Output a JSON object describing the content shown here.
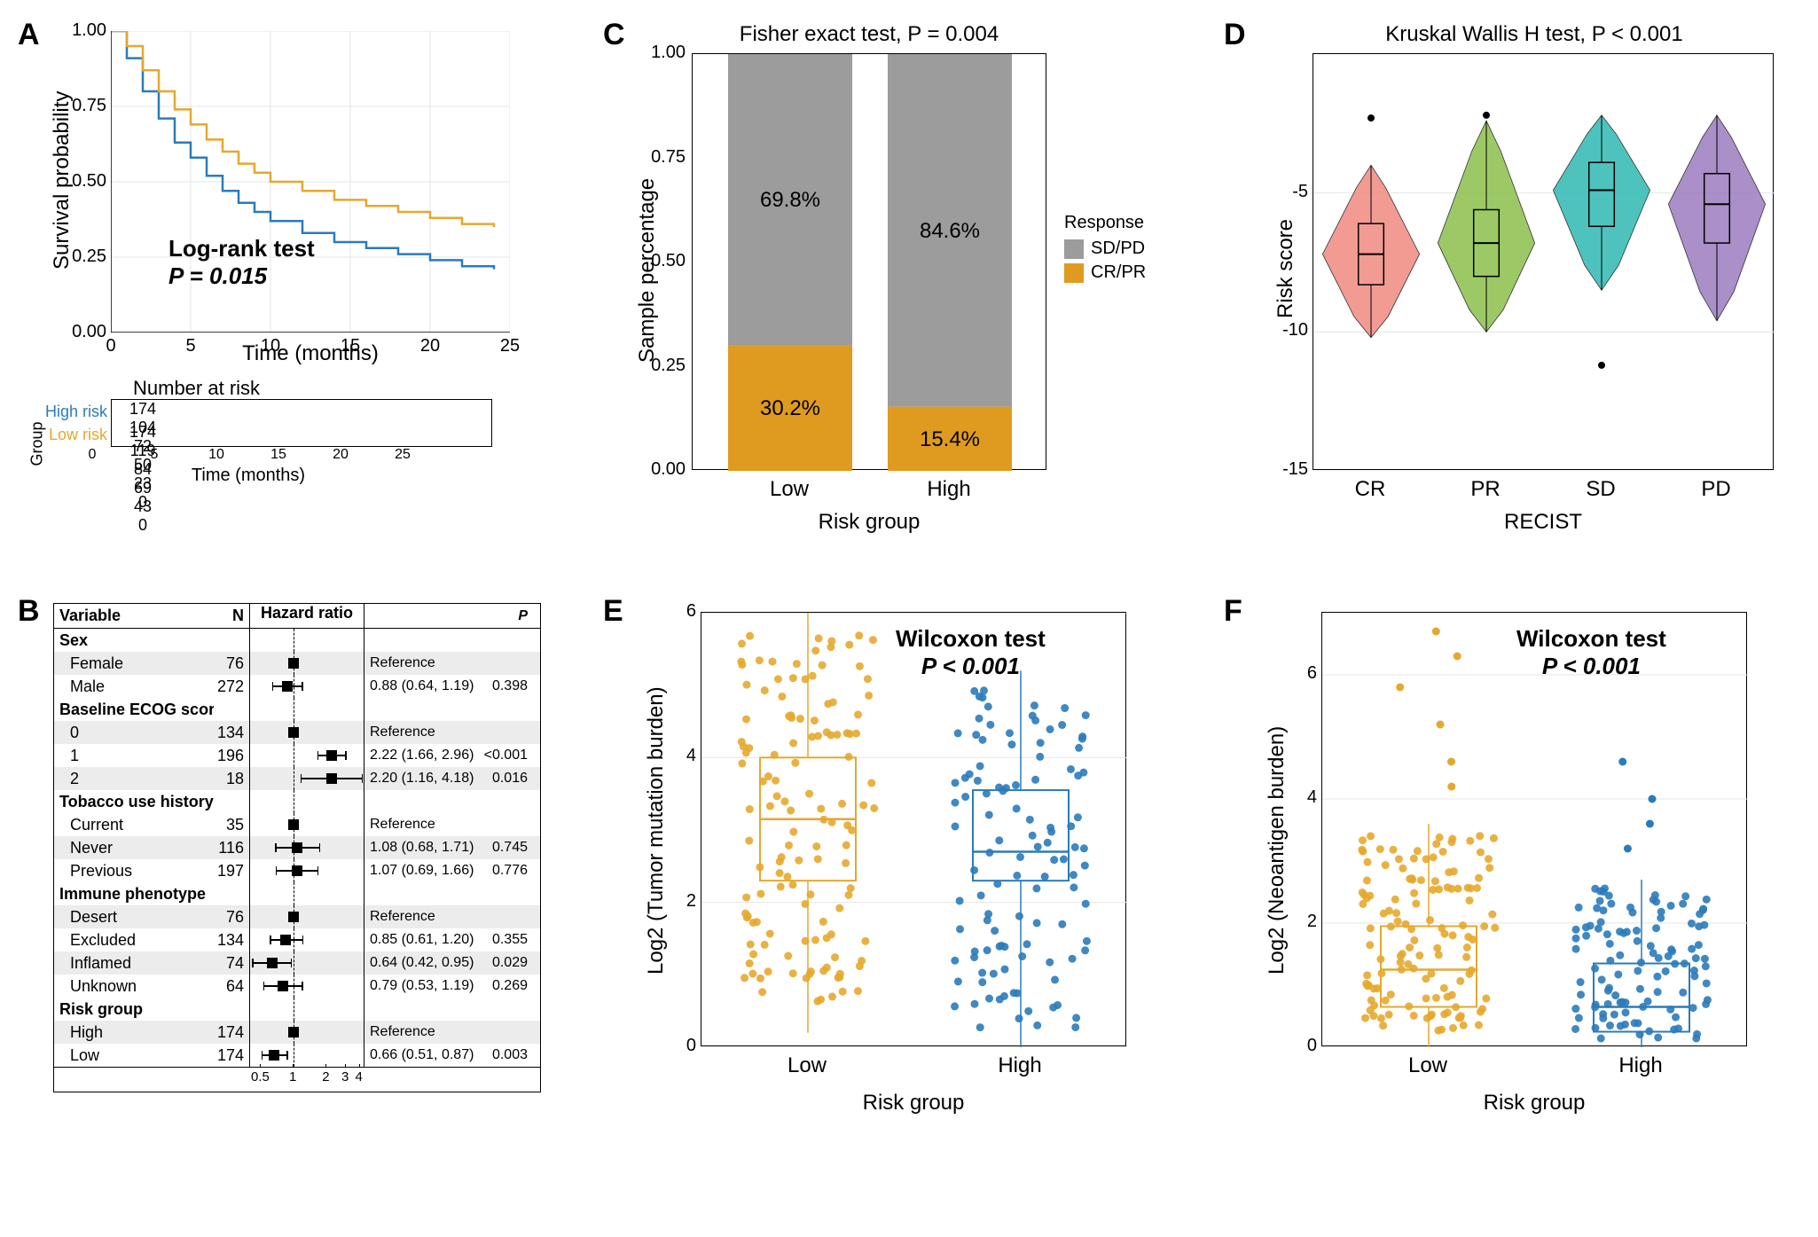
{
  "colors": {
    "high_risk": "#2b7bba",
    "low_risk": "#e5a82e",
    "sd_pd": "#9c9c9c",
    "cr_pr": "#de9b1f",
    "violin_cr": "#f08a80",
    "violin_pr": "#8bbf4b",
    "violin_sd": "#2fb8b3",
    "violin_pd": "#9b7bbf",
    "grid": "#e5e5e5",
    "text": "#000000"
  },
  "panelA": {
    "label": "A",
    "type": "km-survival",
    "ylabel": "Survival probability",
    "xlabel": "Time (months)",
    "xlim": [
      0,
      25
    ],
    "xticks": [
      0,
      5,
      10,
      15,
      20,
      25
    ],
    "ylim": [
      0,
      1
    ],
    "yticks": [
      0,
      0.25,
      0.5,
      0.75,
      1
    ],
    "yticks_labels": [
      "0.00",
      "0.25",
      "0.50",
      "0.75",
      "1.00"
    ],
    "annotation_lines": [
      "Log-rank test",
      "P = 0.015"
    ],
    "series": {
      "high": {
        "color": "#2b7bba",
        "points": [
          [
            0,
            1.0
          ],
          [
            1,
            0.91
          ],
          [
            2,
            0.8
          ],
          [
            3,
            0.71
          ],
          [
            4,
            0.63
          ],
          [
            5,
            0.58
          ],
          [
            6,
            0.52
          ],
          [
            7,
            0.47
          ],
          [
            8,
            0.43
          ],
          [
            9,
            0.4
          ],
          [
            10,
            0.37
          ],
          [
            12,
            0.33
          ],
          [
            14,
            0.3
          ],
          [
            16,
            0.28
          ],
          [
            18,
            0.26
          ],
          [
            20,
            0.24
          ],
          [
            22,
            0.22
          ],
          [
            24,
            0.21
          ]
        ]
      },
      "low": {
        "color": "#e5a82e",
        "points": [
          [
            0,
            1.0
          ],
          [
            1,
            0.95
          ],
          [
            2,
            0.87
          ],
          [
            3,
            0.8
          ],
          [
            4,
            0.74
          ],
          [
            5,
            0.69
          ],
          [
            6,
            0.64
          ],
          [
            7,
            0.6
          ],
          [
            8,
            0.56
          ],
          [
            9,
            0.53
          ],
          [
            10,
            0.5
          ],
          [
            12,
            0.47
          ],
          [
            14,
            0.44
          ],
          [
            16,
            0.42
          ],
          [
            18,
            0.4
          ],
          [
            20,
            0.38
          ],
          [
            22,
            0.36
          ],
          [
            24,
            0.35
          ]
        ]
      }
    },
    "risk_table": {
      "title": "Number at risk",
      "group_label": "Group",
      "rows": [
        {
          "label": "High risk",
          "color": "#2b7bba",
          "values": [
            174,
            104,
            72,
            50,
            23,
            0
          ]
        },
        {
          "label": "Low risk",
          "color": "#e5a82e",
          "values": [
            174,
            119,
            84,
            69,
            43,
            0
          ]
        }
      ],
      "xlabel": "Time (months)"
    }
  },
  "panelB": {
    "label": "B",
    "type": "forest",
    "headers": {
      "var": "Variable",
      "n": "N",
      "hr": "Hazard ratio",
      "p": "P"
    },
    "xticks": [
      0.5,
      1,
      2,
      3,
      4
    ],
    "xlog": true,
    "ref": 1,
    "rows": [
      {
        "section": "Sex"
      },
      {
        "var": "Female",
        "n": 76,
        "hr": null,
        "ci": null,
        "p": null,
        "ref": true
      },
      {
        "var": "Male",
        "n": 272,
        "hr": 0.88,
        "ci": [
          0.64,
          1.19
        ],
        "p": "0.398"
      },
      {
        "section": "Baseline ECOG score"
      },
      {
        "var": "0",
        "n": 134,
        "hr": null,
        "ref": true
      },
      {
        "var": "1",
        "n": 196,
        "hr": 2.22,
        "ci": [
          1.66,
          2.96
        ],
        "p": "<0.001"
      },
      {
        "var": "2",
        "n": 18,
        "hr": 2.2,
        "ci": [
          1.16,
          4.18
        ],
        "p": "0.016"
      },
      {
        "section": "Tobacco use history"
      },
      {
        "var": "Current",
        "n": 35,
        "hr": null,
        "ref": true
      },
      {
        "var": "Never",
        "n": 116,
        "hr": 1.08,
        "ci": [
          0.68,
          1.71
        ],
        "p": "0.745"
      },
      {
        "var": "Previous",
        "n": 197,
        "hr": 1.07,
        "ci": [
          0.69,
          1.66
        ],
        "p": "0.776"
      },
      {
        "section": "Immune phenotype"
      },
      {
        "var": "Desert",
        "n": 76,
        "hr": null,
        "ref": true
      },
      {
        "var": "Excluded",
        "n": 134,
        "hr": 0.85,
        "ci": [
          0.61,
          1.2
        ],
        "p": "0.355"
      },
      {
        "var": "Inflamed",
        "n": 74,
        "hr": 0.64,
        "ci": [
          0.42,
          0.95
        ],
        "p": "0.029"
      },
      {
        "var": "Unknown",
        "n": 64,
        "hr": 0.79,
        "ci": [
          0.53,
          1.19
        ],
        "p": "0.269"
      },
      {
        "section": "Risk group"
      },
      {
        "var": "High",
        "n": 174,
        "hr": null,
        "ref": true
      },
      {
        "var": "Low",
        "n": 174,
        "hr": 0.66,
        "ci": [
          0.51,
          0.87
        ],
        "p": "0.003"
      }
    ]
  },
  "panelC": {
    "label": "C",
    "type": "stacked-bar",
    "title": "Fisher exact test, P = 0.004",
    "ylabel": "Sample percentage",
    "xlabel": "Risk group",
    "ylim": [
      0,
      1
    ],
    "yticks": [
      0,
      0.25,
      0.5,
      0.75,
      1
    ],
    "yticks_labels": [
      "0.00",
      "0.25",
      "0.50",
      "0.75",
      "1.00"
    ],
    "categories": [
      "Low",
      "High"
    ],
    "legend_title": "Response",
    "stacks": [
      {
        "name": "SD/PD",
        "color": "#9c9c9c"
      },
      {
        "name": "CR/PR",
        "color": "#de9b1f"
      }
    ],
    "data": {
      "Low": {
        "CR/PR": 0.302,
        "SD/PD": 0.698,
        "labels": {
          "SD/PD": "69.8%",
          "CR/PR": "30.2%"
        }
      },
      "High": {
        "CR/PR": 0.154,
        "SD/PD": 0.846,
        "labels": {
          "SD/PD": "84.6%",
          "CR/PR": "15.4%"
        }
      }
    }
  },
  "panelD": {
    "label": "D",
    "type": "violin-box",
    "title": "Kruskal Wallis H test, P < 0.001",
    "ylabel": "Risk score",
    "xlabel": "RECIST",
    "ylim": [
      -15,
      0
    ],
    "yticks": [
      -15,
      -10,
      -5
    ],
    "categories": [
      "CR",
      "PR",
      "SD",
      "PD"
    ],
    "groups": [
      {
        "name": "CR",
        "color": "#f08a80",
        "q1": -8.3,
        "med": -7.2,
        "q3": -6.1,
        "lo": -10.2,
        "hi": -4.0,
        "outliers": [
          -2.3
        ]
      },
      {
        "name": "PR",
        "color": "#8bbf4b",
        "q1": -8.0,
        "med": -6.8,
        "q3": -5.6,
        "lo": -10.0,
        "hi": -2.4,
        "outliers": [
          -2.2
        ]
      },
      {
        "name": "SD",
        "color": "#2fb8b3",
        "q1": -6.2,
        "med": -4.9,
        "q3": -3.9,
        "lo": -8.5,
        "hi": -2.2,
        "outliers": [
          -11.2
        ]
      },
      {
        "name": "PD",
        "color": "#9b7bbf",
        "q1": -6.8,
        "med": -5.4,
        "q3": -4.3,
        "lo": -9.6,
        "hi": -2.2,
        "outliers": []
      }
    ]
  },
  "panelE": {
    "label": "E",
    "type": "box-jitter",
    "annotation_lines": [
      "Wilcoxon test",
      "P < 0.001"
    ],
    "ylabel": "Log2 (Tumor mutation burden)",
    "xlabel": "Risk group",
    "ylim": [
      0,
      6
    ],
    "yticks": [
      0,
      2,
      4,
      6
    ],
    "categories": [
      "Low",
      "High"
    ],
    "groups": [
      {
        "name": "Low",
        "color": "#e5a82e",
        "q1": 2.3,
        "med": 3.15,
        "q3": 4.0,
        "lo": 0.2,
        "hi": 6.0,
        "n_points": 130
      },
      {
        "name": "High",
        "color": "#2b7bba",
        "q1": 2.3,
        "med": 2.7,
        "q3": 3.55,
        "lo": 0.0,
        "hi": 5.2,
        "n_points": 110
      }
    ]
  },
  "panelF": {
    "label": "F",
    "type": "box-jitter",
    "annotation_lines": [
      "Wilcoxon test",
      "P < 0.001"
    ],
    "ylabel": "Log2 (Neoantigen burden)",
    "xlabel": "Risk group",
    "ylim": [
      0,
      7
    ],
    "yticks": [
      0,
      2,
      4,
      6
    ],
    "categories": [
      "Low",
      "High"
    ],
    "groups": [
      {
        "name": "Low",
        "color": "#e5a82e",
        "q1": 0.65,
        "med": 1.25,
        "q3": 1.95,
        "lo": 0.0,
        "hi": 3.6,
        "n_points": 130,
        "outliers": [
          4.2,
          4.6,
          5.2,
          5.8,
          6.3,
          6.7
        ]
      },
      {
        "name": "High",
        "color": "#2b7bba",
        "q1": 0.25,
        "med": 0.65,
        "q3": 1.35,
        "lo": 0.0,
        "hi": 2.7,
        "n_points": 110,
        "outliers": [
          3.2,
          3.6,
          4.0,
          4.6
        ]
      }
    ]
  }
}
